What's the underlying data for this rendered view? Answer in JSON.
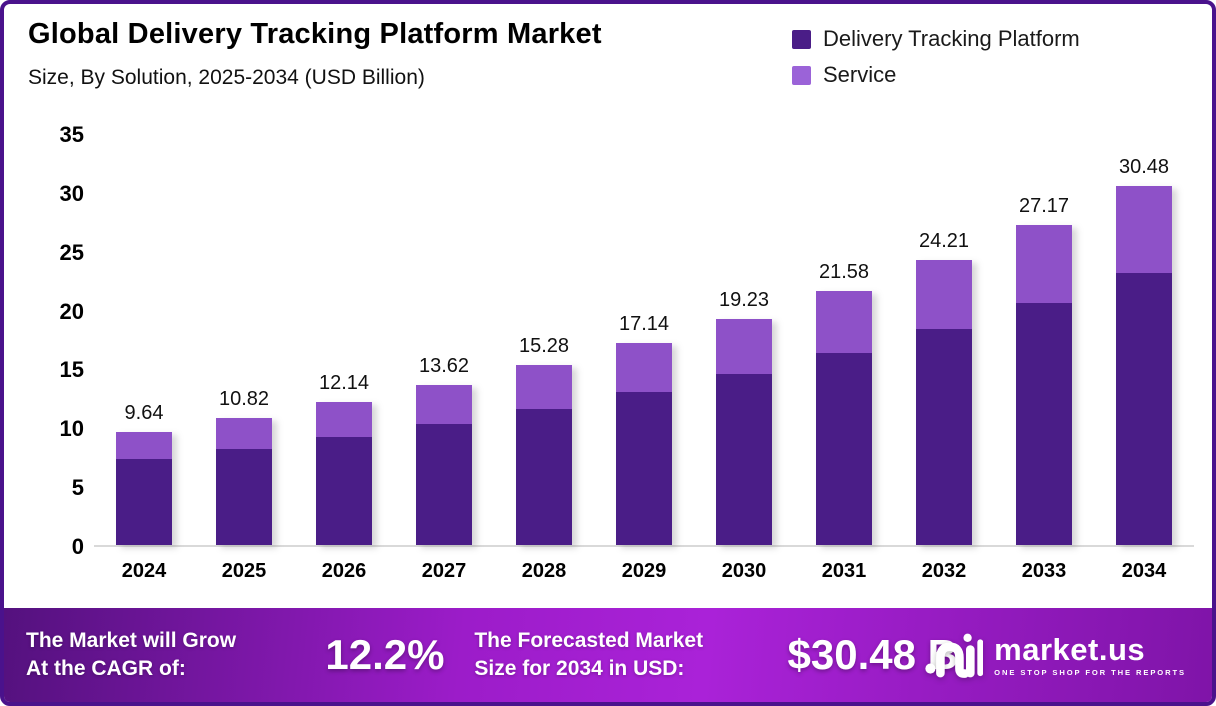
{
  "frame": {
    "border_color": "#4A128C",
    "background": "#ffffff"
  },
  "header": {
    "title": "Global Delivery Tracking Platform Market",
    "subtitle": "Size, By Solution, 2025-2034 (USD Billion)"
  },
  "legend": {
    "items": [
      {
        "label": "Delivery Tracking Platform",
        "color": "#4A1D87"
      },
      {
        "label": "Service",
        "color": "#9B63D8"
      }
    ]
  },
  "chart_data": {
    "type": "bar",
    "stacked": true,
    "title": "Global Delivery Tracking Platform Market Size, By Solution, 2025-2034 (USD Billion)",
    "categories": [
      "2024",
      "2025",
      "2026",
      "2027",
      "2028",
      "2029",
      "2030",
      "2031",
      "2032",
      "2033",
      "2034"
    ],
    "series": [
      {
        "name": "Delivery Tracking Platform",
        "color": "#4A1D87",
        "values": [
          7.3,
          8.19,
          9.19,
          10.31,
          11.57,
          12.97,
          14.56,
          16.34,
          18.33,
          20.57,
          23.07
        ]
      },
      {
        "name": "Service",
        "color": "#8E51C8",
        "values": [
          2.34,
          2.63,
          2.95,
          3.31,
          3.71,
          4.17,
          4.67,
          5.24,
          5.88,
          6.6,
          7.41
        ]
      }
    ],
    "totals": [
      9.64,
      10.82,
      12.14,
      13.62,
      15.28,
      17.14,
      19.23,
      21.58,
      24.21,
      27.17,
      30.48
    ],
    "total_labels": [
      "9.64",
      "10.82",
      "12.14",
      "13.62",
      "15.28",
      "17.14",
      "19.23",
      "21.58",
      "24.21",
      "27.17",
      "30.48"
    ],
    "xlabel": "",
    "ylabel": "",
    "yticks": [
      0,
      5,
      10,
      15,
      20,
      25,
      30,
      35
    ],
    "ylim": [
      0,
      35
    ],
    "grid": false,
    "legend_position": "top-right"
  },
  "banner": {
    "cagr_label_line1": "The Market will Grow",
    "cagr_label_line2": "At the CAGR of:",
    "cagr_value": "12.2%",
    "forecast_label_line1": "The Forecasted Market",
    "forecast_label_line2": "Size for 2034 in USD:",
    "forecast_value": "$30.48 B",
    "logo_text": "market.us",
    "logo_tagline": "ONE STOP SHOP FOR THE REPORTS",
    "gradient": [
      "#54117E",
      "#9C1CC9",
      "#AA22D8",
      "#7F14A8"
    ]
  }
}
